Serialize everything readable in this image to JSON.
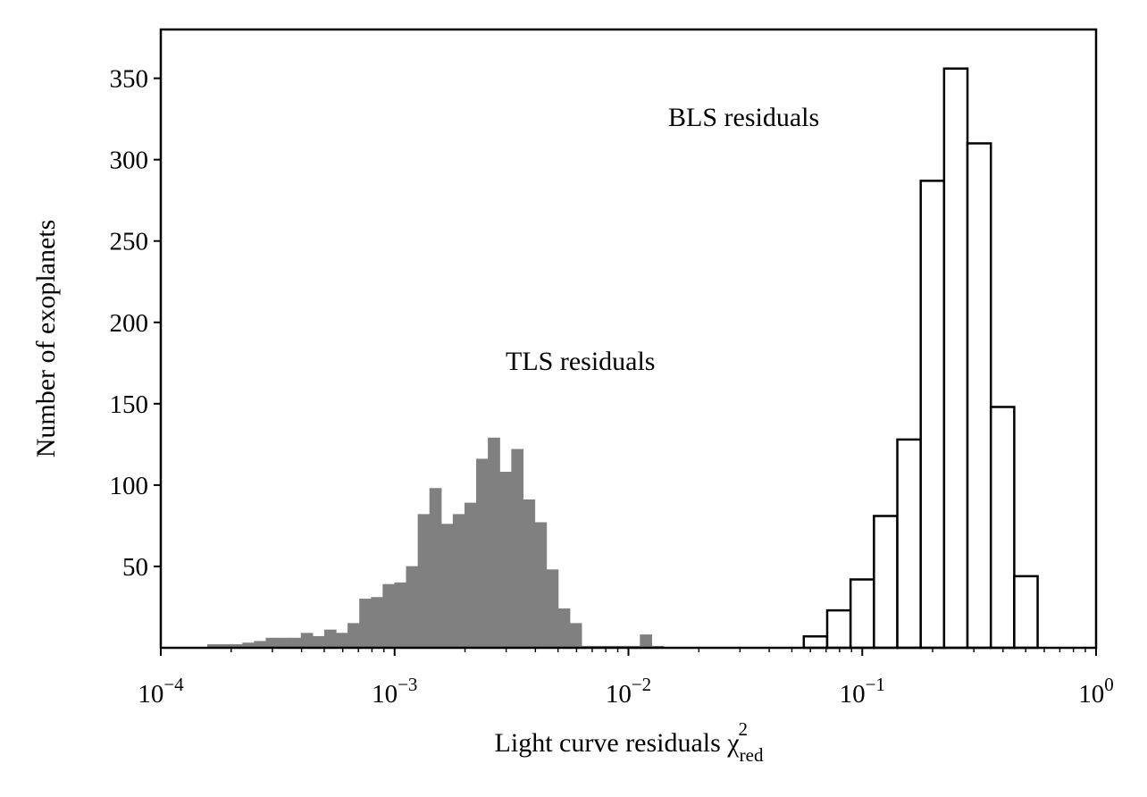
{
  "chart_data": {
    "type": "bar",
    "title": "",
    "xlabel": "Light curve residuals χ",
    "xlabel_sup": "2",
    "xlabel_sub": "red",
    "ylabel": "Number of exoplanets",
    "xscale": "log",
    "xlim": [
      0.0001,
      1
    ],
    "ylim": [
      0,
      380
    ],
    "yticks": [
      50,
      100,
      150,
      200,
      250,
      300,
      350
    ],
    "xtick_labels": [
      {
        "base": "10",
        "exp": "−4"
      },
      {
        "base": "10",
        "exp": "−3"
      },
      {
        "base": "10",
        "exp": "−2"
      },
      {
        "base": "10",
        "exp": "−1"
      },
      {
        "base": "10",
        "exp": "0"
      }
    ],
    "annotations": [
      "BLS residuals",
      "TLS residuals"
    ],
    "series": [
      {
        "name": "TLS residuals",
        "style": "filled",
        "color": "#808080",
        "log_bin_start": -3.8,
        "log_bin_width": 0.05,
        "values": [
          2,
          2,
          2,
          3,
          4,
          6,
          6,
          6,
          9,
          7,
          11,
          9,
          15,
          30,
          31,
          39,
          40,
          50,
          82,
          98,
          76,
          82,
          89,
          116,
          129,
          108,
          122,
          91,
          77,
          48,
          24,
          15,
          1,
          1,
          1,
          1,
          1,
          8,
          1
        ]
      },
      {
        "name": "BLS residuals",
        "style": "outline",
        "color": "#000000",
        "log_bin_start": -1.25,
        "log_bin_width": 0.1,
        "values": [
          7,
          23,
          42,
          81,
          128,
          287,
          356,
          310,
          148,
          44
        ]
      }
    ]
  }
}
